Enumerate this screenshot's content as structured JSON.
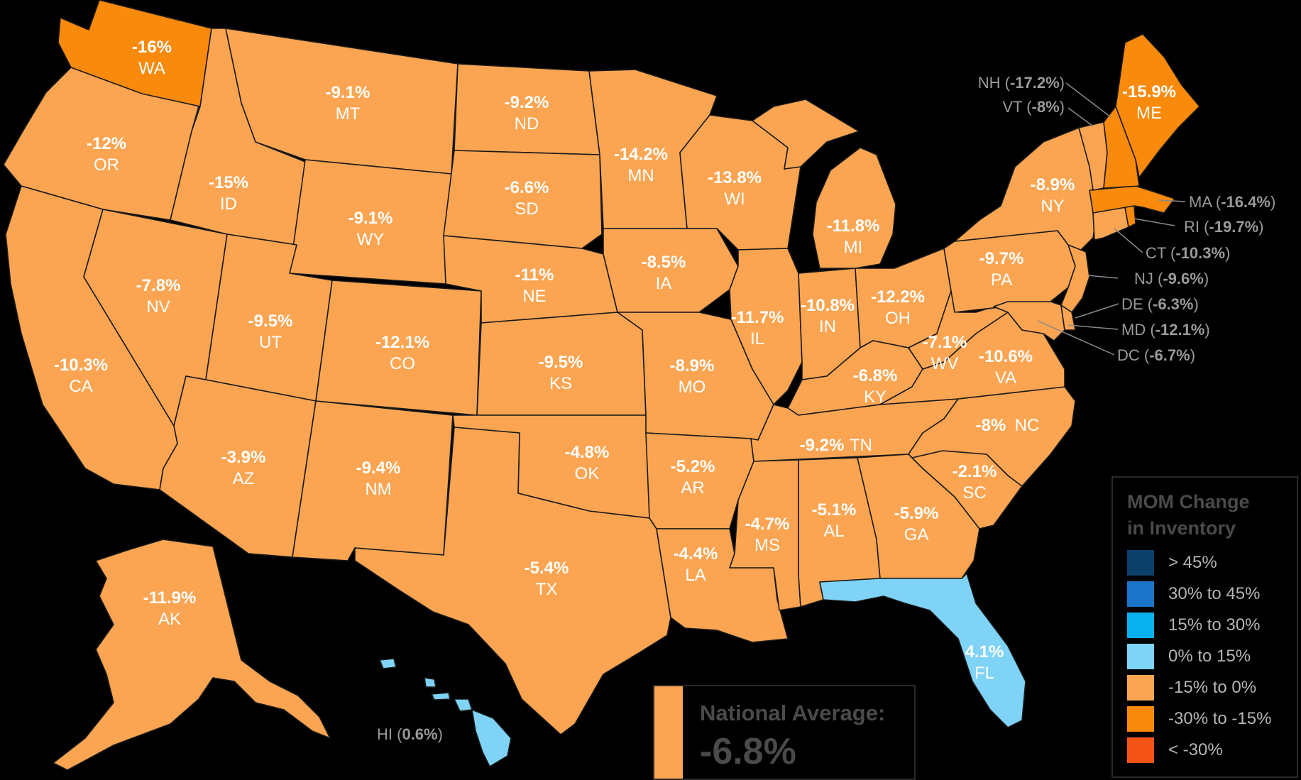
{
  "colors": {
    "gt45": "#0d3f6b",
    "p30to45": "#1a75c9",
    "p15to30": "#09b0ef",
    "p0to15": "#7fd3f7",
    "n15to0": "#fba552",
    "n30to15": "#f98a0c",
    "lt30": "#f55417",
    "background": "#000000"
  },
  "states": {
    "WA": {
      "abbr": "WA",
      "pct": "-16%"
    },
    "OR": {
      "abbr": "OR",
      "pct": "-12%"
    },
    "CA": {
      "abbr": "CA",
      "pct": "-10.3%"
    },
    "ID": {
      "abbr": "ID",
      "pct": "-15%"
    },
    "NV": {
      "abbr": "NV",
      "pct": "-7.8%"
    },
    "MT": {
      "abbr": "MT",
      "pct": "-9.1%"
    },
    "WY": {
      "abbr": "WY",
      "pct": "-9.1%"
    },
    "UT": {
      "abbr": "UT",
      "pct": "-9.5%"
    },
    "AZ": {
      "abbr": "AZ",
      "pct": "-3.9%"
    },
    "CO": {
      "abbr": "CO",
      "pct": "-12.1%"
    },
    "NM": {
      "abbr": "NM",
      "pct": "-9.4%"
    },
    "ND": {
      "abbr": "ND",
      "pct": "-9.2%"
    },
    "SD": {
      "abbr": "SD",
      "pct": "-6.6%"
    },
    "NE": {
      "abbr": "NE",
      "pct": "-11%"
    },
    "KS": {
      "abbr": "KS",
      "pct": "-9.5%"
    },
    "OK": {
      "abbr": "OK",
      "pct": "-4.8%"
    },
    "TX": {
      "abbr": "TX",
      "pct": "-5.4%"
    },
    "MN": {
      "abbr": "MN",
      "pct": "-14.2%"
    },
    "IA": {
      "abbr": "IA",
      "pct": "-8.5%"
    },
    "MO": {
      "abbr": "MO",
      "pct": "-8.9%"
    },
    "AR": {
      "abbr": "AR",
      "pct": "-5.2%"
    },
    "LA": {
      "abbr": "LA",
      "pct": "-4.4%"
    },
    "WI": {
      "abbr": "WI",
      "pct": "-13.8%"
    },
    "IL": {
      "abbr": "IL",
      "pct": "-11.7%"
    },
    "MI": {
      "abbr": "MI",
      "pct": "-11.8%"
    },
    "IN": {
      "abbr": "IN",
      "pct": "-10.8%"
    },
    "OH": {
      "abbr": "OH",
      "pct": "-12.2%"
    },
    "KY": {
      "abbr": "KY",
      "pct": "-6.8%"
    },
    "TN": {
      "abbr": "TN",
      "pct": "-9.2%"
    },
    "MS": {
      "abbr": "MS",
      "pct": "-4.7%"
    },
    "AL": {
      "abbr": "AL",
      "pct": "-5.1%"
    },
    "GA": {
      "abbr": "GA",
      "pct": "-5.9%"
    },
    "FL": {
      "abbr": "FL",
      "pct": "4.1%"
    },
    "SC": {
      "abbr": "SC",
      "pct": "-2.1%"
    },
    "NC": {
      "abbr": "NC",
      "pct": "-8%"
    },
    "VA": {
      "abbr": "VA",
      "pct": "-10.6%"
    },
    "WV": {
      "abbr": "WV",
      "pct": "-7.1%"
    },
    "PA": {
      "abbr": "PA",
      "pct": "-9.7%"
    },
    "NY": {
      "abbr": "NY",
      "pct": "-8.9%"
    },
    "ME": {
      "abbr": "ME",
      "pct": "-15.9%"
    },
    "AK": {
      "abbr": "AK",
      "pct": "-11.9%"
    }
  },
  "callouts": {
    "NH": {
      "prefix": "NH (",
      "value": "-17.2%",
      "suffix": ")"
    },
    "VT": {
      "prefix": "VT (",
      "value": "-8%",
      "suffix": ")"
    },
    "MA": {
      "prefix": "MA (",
      "value": "-16.4%",
      "suffix": ")"
    },
    "RI": {
      "prefix": "RI (",
      "value": "-19.7%",
      "suffix": ")"
    },
    "CT": {
      "prefix": "CT (",
      "value": "-10.3%",
      "suffix": ")"
    },
    "NJ": {
      "prefix": "NJ  (",
      "value": "-9.6%",
      "suffix": ")"
    },
    "DE": {
      "prefix": "DE (",
      "value": "-6.3%",
      "suffix": ")"
    },
    "MD": {
      "prefix": "MD (",
      "value": "-12.1%",
      "suffix": ")"
    },
    "DC": {
      "prefix": "DC (",
      "value": "-6.7%",
      "suffix": ")"
    },
    "HI": {
      "prefix": "HI (",
      "value": "0.6%",
      "suffix": ")"
    }
  },
  "legend": {
    "title_line1": "MOM Change",
    "title_line2": "in Inventory",
    "items": [
      {
        "label": "> 45%"
      },
      {
        "label": "30% to 45%"
      },
      {
        "label": "15% to 30%"
      },
      {
        "label": "0% to 15%"
      },
      {
        "label": "-15% to 0%"
      },
      {
        "label": "-30% to -15%"
      },
      {
        "label": "< -30%"
      }
    ]
  },
  "national": {
    "label": "National Average:",
    "value": "-6.8%"
  }
}
